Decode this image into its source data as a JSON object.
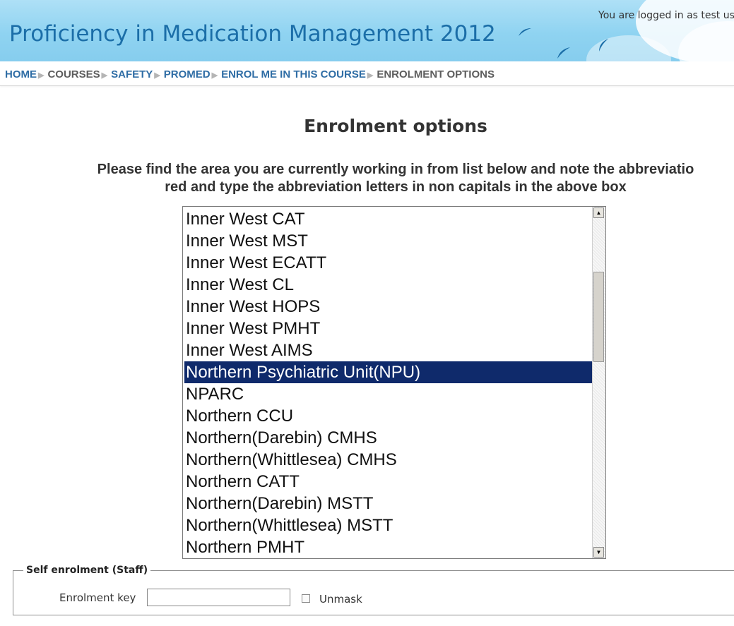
{
  "header": {
    "site_title": "Proficiency in Medication Management 2012",
    "login_text": "You are logged in as test use"
  },
  "breadcrumb": [
    {
      "label": "HOME",
      "link": true
    },
    {
      "label": "COURSES",
      "link": false
    },
    {
      "label": "SAFETY",
      "link": true
    },
    {
      "label": "PROMED",
      "link": true
    },
    {
      "label": "ENROL ME IN THIS COURSE",
      "link": true
    },
    {
      "label": "ENROLMENT OPTIONS",
      "link": false
    }
  ],
  "main": {
    "heading": "Enrolment options",
    "instructions_line1": "Please find the area you are currently working in from list below and note the abbreviatio",
    "instructions_line2": "red and type the abbreviation letters in non capitals in the above box"
  },
  "area_list": {
    "selected": "Northern Psychiatric Unit(NPU)",
    "items": [
      "Inner West CAT",
      "Inner West MST",
      "Inner West ECATT",
      "Inner West CL",
      "Inner West HOPS",
      "Inner West PMHT",
      "Inner West AIMS",
      "Northern Psychiatric Unit(NPU)",
      "NPARC",
      "Northern CCU",
      "Northern(Darebin) CMHS",
      "Northern(Whittlesea) CMHS",
      "Northern CATT",
      "Northern(Darebin) MSTT",
      "Northern(Whittlesea) MSTT",
      "Northern PMHT"
    ],
    "scroll_up_icon": "arrow-up-icon",
    "scroll_down_icon": "arrow-down-icon"
  },
  "self_enrolment": {
    "legend": "Self enrolment (Staff)",
    "key_label": "Enrolment key",
    "key_value": "",
    "unmask_label": "Unmask",
    "unmask_checked": false
  },
  "colors": {
    "header_bg": "#8fd3f1",
    "title": "#1b6ea8",
    "link": "#2f6da5",
    "selected_bg": "#0f2a6b"
  }
}
